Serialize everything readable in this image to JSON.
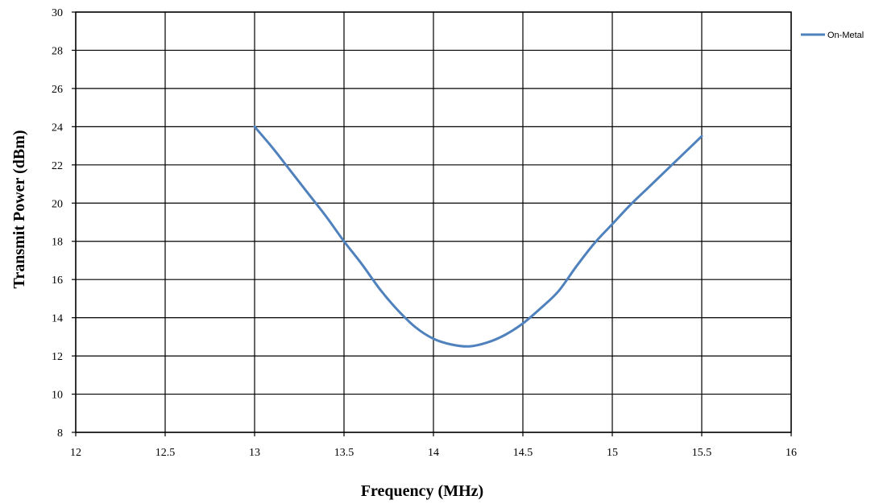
{
  "chart_data": {
    "type": "line",
    "title": "",
    "xlabel": "Frequency (MHz)",
    "ylabel": "Transmit Power (dBm)",
    "xlim": [
      12,
      16
    ],
    "ylim": [
      8,
      30
    ],
    "x_ticks": [
      "12",
      "12.5",
      "13",
      "13.5",
      "14",
      "14.5",
      "15",
      "15.5",
      "16"
    ],
    "y_ticks": [
      "8",
      "10",
      "12",
      "14",
      "16",
      "18",
      "20",
      "22",
      "24",
      "26",
      "28",
      "30"
    ],
    "grid": true,
    "legend_position": "top-right",
    "series": [
      {
        "name": "On-Metal",
        "color": "#4f81bd",
        "x": [
          13.0,
          13.1,
          13.2,
          13.3,
          13.4,
          13.5,
          13.6,
          13.7,
          13.8,
          13.9,
          14.0,
          14.1,
          14.2,
          14.3,
          14.4,
          14.5,
          14.6,
          14.7,
          14.8,
          14.9,
          15.0,
          15.1,
          15.2,
          15.3,
          15.4,
          15.5
        ],
        "y": [
          24.0,
          22.9,
          21.7,
          20.5,
          19.3,
          18.0,
          16.8,
          15.5,
          14.4,
          13.5,
          12.9,
          12.6,
          12.5,
          12.7,
          13.1,
          13.7,
          14.5,
          15.4,
          16.7,
          17.9,
          18.9,
          19.9,
          20.8,
          21.7,
          22.6,
          23.5
        ]
      }
    ]
  }
}
